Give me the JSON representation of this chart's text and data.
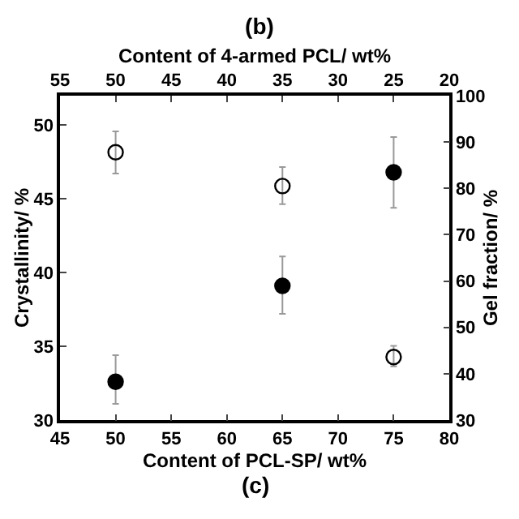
{
  "chart_data": {
    "type": "scatter",
    "title": "(b)",
    "xlabel": "Content of PCL-SP/ wt%",
    "x2label": "Content of 4-armed PCL/ wt%",
    "ylabel": "Crystallinity/ %",
    "y2label": "Gel fraction/ %",
    "xlim": [
      45,
      80
    ],
    "xticks": [
      45,
      50,
      55,
      60,
      65,
      70,
      75,
      80
    ],
    "x2lim": [
      55,
      20
    ],
    "x2ticks": [
      55,
      50,
      45,
      40,
      35,
      30,
      25,
      20
    ],
    "ylim": [
      30,
      52
    ],
    "yticks": [
      30,
      35,
      40,
      45,
      50
    ],
    "y2lim": [
      30,
      100
    ],
    "y2ticks": [
      30,
      40,
      50,
      60,
      70,
      80,
      90,
      100
    ],
    "marker": "circle",
    "legend": false,
    "series": [
      {
        "color": "#000000",
        "axis": "y",
        "x": [
          50,
          65,
          75
        ],
        "values": [
          32.6,
          39.1,
          46.8
        ],
        "errors": [
          [
            31.1,
            34.4
          ],
          [
            37.2,
            41.1
          ],
          [
            44.4,
            49.2
          ]
        ]
      },
      {
        "color": "#000000",
        "axis": "y2",
        "x": [
          50,
          65,
          75
        ],
        "values": [
          87.8,
          80.5,
          43.6
        ],
        "errors": [
          [
            83.2,
            92.3
          ],
          [
            76.6,
            84.6
          ],
          [
            41.6,
            46.0
          ]
        ]
      }
    ],
    "annotations": [
      "(c)"
    ]
  }
}
